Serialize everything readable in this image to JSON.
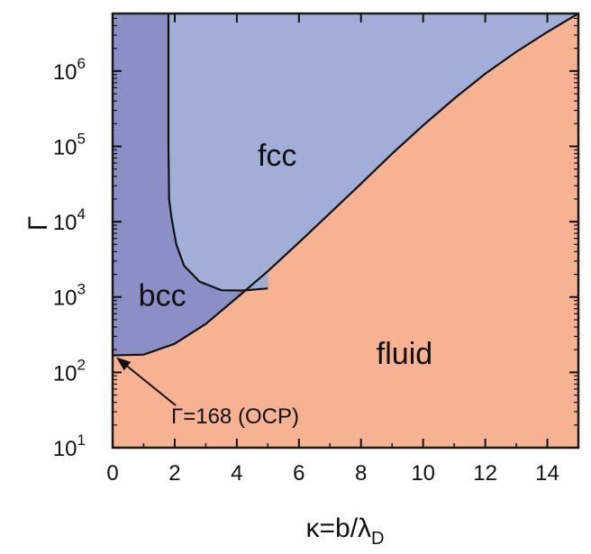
{
  "chart_data": {
    "type": "area",
    "title": "",
    "xlabel": "κ=b/λ",
    "xlabel_sub": "D",
    "ylabel": "Γ",
    "xlim": [
      0,
      15
    ],
    "ylim": [
      10,
      5800000
    ],
    "yscale": "log",
    "x_ticks": [
      0,
      2,
      4,
      6,
      8,
      10,
      12,
      14
    ],
    "y_ticks": [
      {
        "value": 10,
        "base": "10",
        "exp": "1"
      },
      {
        "value": 100,
        "base": "10",
        "exp": "2"
      },
      {
        "value": 1000,
        "base": "10",
        "exp": "3"
      },
      {
        "value": 10000,
        "base": "10",
        "exp": "4"
      },
      {
        "value": 100000,
        "base": "10",
        "exp": "5"
      },
      {
        "value": 1000000,
        "base": "10",
        "exp": "6"
      }
    ],
    "regions": [
      {
        "name": "fluid",
        "color": "#f7b193",
        "label_at": [
          9.4,
          130
        ]
      },
      {
        "name": "bcc",
        "color": "#8b8fc6",
        "label_at": [
          1.6,
          760
        ]
      },
      {
        "name": "fcc",
        "color": "#a3aed8",
        "label_at": [
          5.3,
          55000
        ]
      }
    ],
    "melting_curve": [
      {
        "x": 0,
        "y": 168
      },
      {
        "x": 1,
        "y": 172
      },
      {
        "x": 2,
        "y": 240
      },
      {
        "x": 3,
        "y": 440
      },
      {
        "x": 4,
        "y": 980
      },
      {
        "x": 5,
        "y": 2200
      },
      {
        "x": 6,
        "y": 5300
      },
      {
        "x": 7,
        "y": 13000
      },
      {
        "x": 8,
        "y": 32000
      },
      {
        "x": 9,
        "y": 80000
      },
      {
        "x": 10,
        "y": 190000
      },
      {
        "x": 11,
        "y": 430000
      },
      {
        "x": 12,
        "y": 920000
      },
      {
        "x": 13,
        "y": 1800000
      },
      {
        "x": 14,
        "y": 3300000
      },
      {
        "x": 15,
        "y": 5800000
      }
    ],
    "bcc_fcc_boundary": [
      {
        "x": 1.8,
        "y": 5800000
      },
      {
        "x": 1.8,
        "y": 1000000
      },
      {
        "x": 1.8,
        "y": 100000
      },
      {
        "x": 1.82,
        "y": 20000
      },
      {
        "x": 1.9,
        "y": 11000
      },
      {
        "x": 2.05,
        "y": 5000
      },
      {
        "x": 2.3,
        "y": 2600
      },
      {
        "x": 2.8,
        "y": 1600
      },
      {
        "x": 3.5,
        "y": 1230
      },
      {
        "x": 4.2,
        "y": 1220
      },
      {
        "x": 5,
        "y": 1300
      }
    ],
    "annotations": [
      {
        "text": "Γ=168 (OCP)",
        "points_to": {
          "x": 0,
          "y": 168
        }
      }
    ],
    "colors": {
      "frame": "#1a1a1a",
      "curve": "#111111"
    }
  }
}
